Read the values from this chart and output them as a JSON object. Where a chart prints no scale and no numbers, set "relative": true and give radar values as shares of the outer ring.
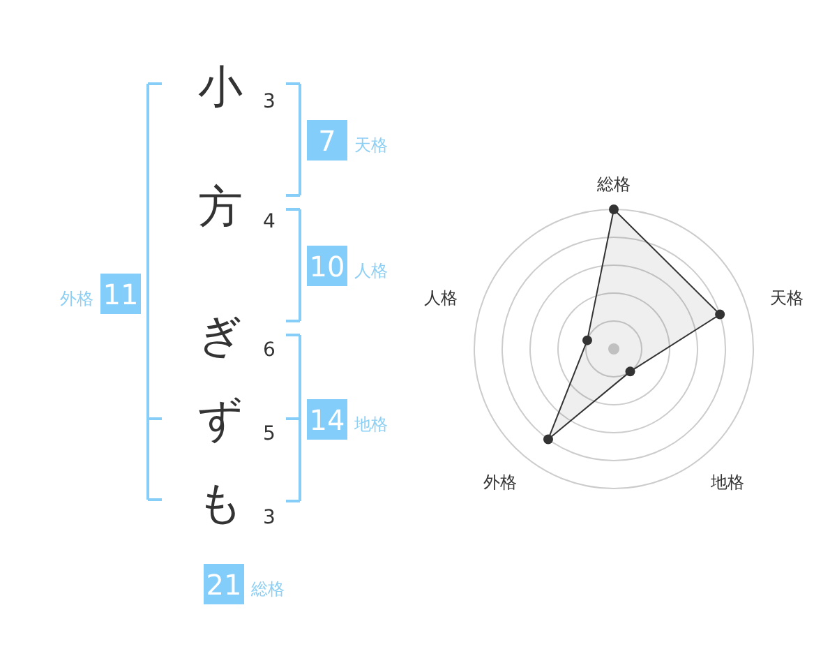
{
  "chart_data": [
    {
      "type": "other",
      "categories": [
        "小",
        "方",
        "ぎ",
        "ず",
        "も"
      ],
      "values": [
        3,
        4,
        6,
        5,
        3
      ],
      "data_labels": true,
      "annotations": [
        "7",
        "天格",
        "10",
        "人格",
        "14",
        "地格",
        "11",
        "外格",
        "21",
        "総格"
      ]
    },
    {
      "type": "radar",
      "categories": [
        "総格",
        "天格",
        "地格",
        "外格",
        "人格"
      ],
      "series": [
        {
          "color": "#333333",
          "values": [
            1,
            0.8,
            0.2,
            0.8,
            0.2
          ]
        }
      ],
      "relative": true,
      "grid": true,
      "marker": "circle"
    }
  ]
}
